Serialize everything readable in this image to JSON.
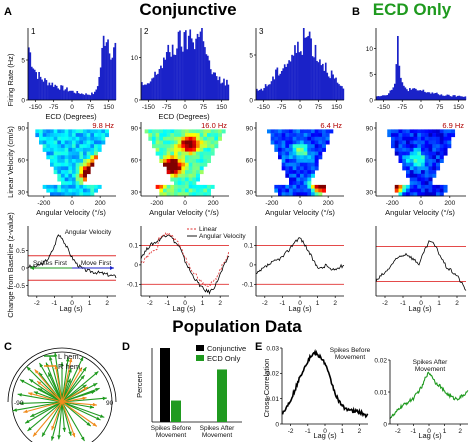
{
  "titles": {
    "conjunctive": "Conjunctive",
    "ecd_only": "ECD Only",
    "population": "Population Data"
  },
  "panel_labels": {
    "A": "A",
    "B": "B",
    "C": "C",
    "D": "D",
    "E": "E"
  },
  "colors": {
    "green": "#1f9a1f",
    "red": "#e03030",
    "orange": "#f08c1e",
    "blue": "#1a22c8",
    "dark_red": "#b00000"
  },
  "row1": {
    "ylabel": "Firing Rate (Hz)",
    "xlabel": "ECD (Degrees)",
    "x_ticks": [
      "-150",
      "-75",
      "0",
      "75",
      "150"
    ],
    "cells": [
      {
        "id": "1",
        "y_ticks": [
          "0",
          "5"
        ],
        "y_max": 9,
        "profile": [
          [
            0,
            7
          ],
          [
            15,
            5
          ],
          [
            30,
            3.6
          ],
          [
            50,
            2.8
          ],
          [
            70,
            2.4
          ],
          [
            100,
            2
          ],
          [
            130,
            1.6
          ],
          [
            160,
            1.3
          ],
          [
            190,
            1
          ],
          [
            220,
            0.8
          ],
          [
            250,
            0.7
          ],
          [
            275,
            0.9
          ],
          [
            290,
            2.5
          ],
          [
            300,
            5
          ],
          [
            310,
            7.8
          ],
          [
            320,
            8.3
          ],
          [
            330,
            7.5
          ],
          [
            345,
            5.5
          ],
          [
            360,
            7
          ]
        ]
      },
      {
        "id": "2",
        "y_ticks": [
          "0",
          "10"
        ],
        "y_max": 17,
        "profile": [
          [
            0,
            4
          ],
          [
            20,
            3
          ],
          [
            40,
            4.5
          ],
          [
            60,
            6
          ],
          [
            80,
            8
          ],
          [
            100,
            10
          ],
          [
            120,
            11.5
          ],
          [
            140,
            12.5
          ],
          [
            160,
            14
          ],
          [
            180,
            13.5
          ],
          [
            200,
            15
          ],
          [
            220,
            14.5
          ],
          [
            240,
            15.5
          ],
          [
            255,
            16.5
          ],
          [
            265,
            13
          ],
          [
            275,
            9
          ],
          [
            290,
            6.5
          ],
          [
            310,
            5
          ],
          [
            330,
            4.5
          ],
          [
            360,
            4
          ]
        ]
      },
      {
        "id": "3",
        "y_ticks": [
          "0",
          "5"
        ],
        "y_max": 8,
        "profile": [
          [
            0,
            1
          ],
          [
            30,
            1.3
          ],
          [
            60,
            2
          ],
          [
            90,
            3.2
          ],
          [
            120,
            4
          ],
          [
            140,
            4.6
          ],
          [
            160,
            5.3
          ],
          [
            180,
            6
          ],
          [
            200,
            6.8
          ],
          [
            215,
            7.4
          ],
          [
            225,
            6.6
          ],
          [
            240,
            5.6
          ],
          [
            260,
            4.6
          ],
          [
            290,
            3.6
          ],
          [
            320,
            2.4
          ],
          [
            340,
            1.6
          ],
          [
            360,
            1
          ]
        ]
      },
      {
        "id": "",
        "y_ticks": [
          "0",
          "5",
          "10"
        ],
        "y_max": 14,
        "profile": [
          [
            0,
            0.8
          ],
          [
            40,
            1
          ],
          [
            65,
            2
          ],
          [
            75,
            4
          ],
          [
            82,
            8
          ],
          [
            86,
            13
          ],
          [
            90,
            9
          ],
          [
            96,
            4
          ],
          [
            110,
            2.5
          ],
          [
            140,
            2
          ],
          [
            180,
            1.8
          ],
          [
            220,
            1.4
          ],
          [
            260,
            1
          ],
          [
            300,
            0.8
          ],
          [
            360,
            0.7
          ]
        ]
      }
    ]
  },
  "row2": {
    "ylabel": "Linear Velocity (cm/s)",
    "xlabel": "Angular Velocity (°/s)",
    "x_ticks": [
      "-200",
      "0",
      "200"
    ],
    "y_ticks": [
      "30",
      "60",
      "90"
    ],
    "rates": [
      "9.8 Hz",
      "16.0 Hz",
      "6.4 Hz",
      "6.9 Hz"
    ]
  },
  "row3": {
    "ylabel": "Change from Baseline (z-value)",
    "xlabel": "Lag (s)",
    "x_ticks": [
      "-2",
      "-1",
      "0",
      "1",
      "2"
    ],
    "left_y_ticks": [
      "-0.5",
      "0",
      "0.5"
    ],
    "mid_y_ticks": [
      "-0.1",
      "0",
      "0.1"
    ],
    "right_y_ticks": [
      "-0.1",
      "0",
      "0.1"
    ],
    "cell1_labels": {
      "angular": "Angular Velocity",
      "spikes_first": "Spikes First",
      "move_first": "Move First"
    },
    "cell2_legend": {
      "linear": "Linear",
      "angular": "Angular Velocity"
    }
  },
  "panel_C": {
    "legend": {
      "l_hem": "L hem.",
      "r_hem": "R hem."
    },
    "ticks": {
      "left": "-90",
      "right": "90"
    },
    "angles_l": [
      -150,
      -130,
      -115,
      -100,
      -92,
      -80,
      -70,
      -62,
      -55,
      -45,
      -38,
      -30,
      -22,
      -15,
      -8,
      0,
      8,
      15,
      25,
      35,
      50,
      62,
      72,
      85,
      100,
      115,
      130,
      150,
      165,
      -165,
      175,
      -175,
      110,
      -120,
      -60,
      40,
      55,
      70,
      20,
      -25
    ],
    "lengths_l": [
      0.8,
      0.9,
      0.7,
      1,
      0.85,
      0.9,
      0.6,
      0.95,
      0.8,
      1,
      0.75,
      0.9,
      0.85,
      0.95,
      1,
      0.8,
      0.9,
      0.7,
      1,
      0.85,
      0.95,
      0.8,
      0.7,
      0.9,
      0.65,
      0.85,
      0.75,
      0.9,
      0.7,
      0.8,
      0.6,
      0.75,
      0.9,
      0.85,
      0.55,
      0.7,
      0.6,
      0.8,
      0.5,
      0.65
    ],
    "angles_r": [
      -140,
      -105,
      -75,
      -40,
      -10,
      12,
      30,
      60,
      95,
      125,
      160,
      -160,
      80,
      -50
    ],
    "lengths_r": [
      0.9,
      0.8,
      0.7,
      0.85,
      0.75,
      0.9,
      0.8,
      0.6,
      0.7,
      0.85,
      0.75,
      0.6,
      0.5,
      0.65
    ]
  },
  "chart_data": [
    {
      "type": "bar",
      "panel": "D",
      "ylabel": "Percent",
      "ylim": [
        0,
        100
      ],
      "categories": [
        "Spikes Before Movement",
        "Spikes After Movement"
      ],
      "series": [
        {
          "name": "Conjunctive",
          "values": [
            100,
            0
          ]
        },
        {
          "name": "ECD Only",
          "values": [
            29,
            71
          ]
        }
      ]
    },
    {
      "type": "line",
      "panel": "E-left",
      "title": "Spikes Before Movement",
      "xlabel": "Lag (s)",
      "ylabel": "Cross-Correlation",
      "ylim": [
        0,
        0.03
      ],
      "y_ticks": [
        "0",
        "0.01",
        "0.02",
        "0.03"
      ],
      "x_ticks": [
        "-2",
        "-1",
        "0",
        "1",
        "2"
      ],
      "x": [
        -2.5,
        -2.2,
        -1.9,
        -1.6,
        -1.3,
        -1.0,
        -0.8,
        -0.6,
        -0.4,
        -0.2,
        0.0,
        0.2,
        0.4,
        0.6,
        0.8,
        1.0,
        1.3,
        1.6,
        1.9,
        2.2,
        2.5
      ],
      "y": [
        0.004,
        0.007,
        0.011,
        0.016,
        0.021,
        0.025,
        0.027,
        0.028,
        0.027,
        0.026,
        0.024,
        0.02,
        0.016,
        0.012,
        0.009,
        0.007,
        0.006,
        0.005,
        0.005,
        0.004,
        0.003
      ]
    },
    {
      "type": "line",
      "panel": "E-right",
      "title": "Spikes After Movement",
      "xlabel": "Lag (s)",
      "ylim": [
        0,
        0.02
      ],
      "y_ticks": [
        "0",
        "0.01",
        "0.02"
      ],
      "x_ticks": [
        "-2",
        "-1",
        "0",
        "1",
        "2"
      ],
      "x": [
        -2.5,
        -2.2,
        -1.9,
        -1.6,
        -1.3,
        -1.0,
        -0.7,
        -0.4,
        -0.2,
        0.0,
        0.2,
        0.4,
        0.7,
        1.0,
        1.3,
        1.6,
        1.9,
        2.2,
        2.5
      ],
      "y": [
        0.002,
        0.003,
        0.005,
        0.006,
        0.007,
        0.008,
        0.01,
        0.012,
        0.015,
        0.016,
        0.015,
        0.013,
        0.012,
        0.01,
        0.009,
        0.008,
        0.008,
        0.009,
        0.01
      ]
    }
  ]
}
